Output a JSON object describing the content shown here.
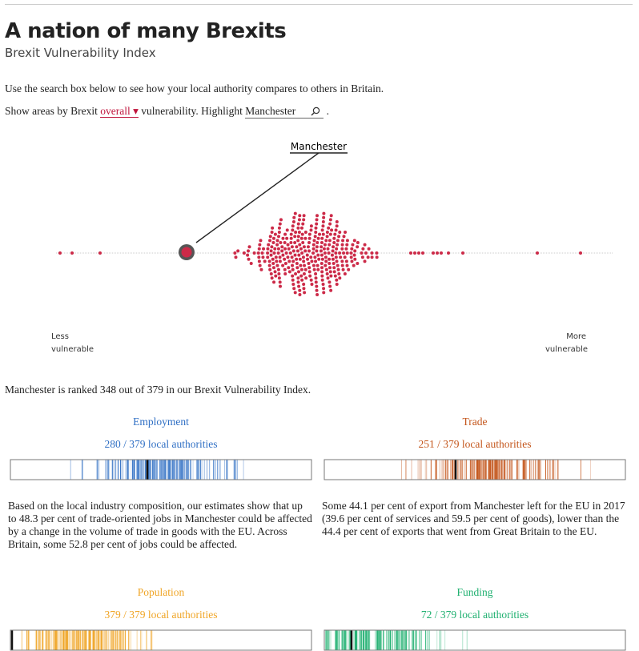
{
  "header": {
    "title": "A nation of many Brexits",
    "subtitle": "Brexit Vulnerability Index"
  },
  "intro": "Use the search box below to see how your local authority compares to others in Britain.",
  "controls": {
    "prefix": "Show areas by Brexit",
    "measure": "overall ▾",
    "middle": "vulnerability. Highlight",
    "search": "Manchester",
    "suffix": "."
  },
  "chart": {
    "highlight": "Manchester",
    "left_label": [
      "Less",
      "vulnerable"
    ],
    "right_label": [
      "More",
      "vulnerable"
    ],
    "color": "#cc2a48"
  },
  "rank_text": "Manchester is ranked 348 out of 379 in our Brexit Vulnerability Index.",
  "tiles": [
    {
      "title": "Employment",
      "subtitle": "280 / 379 local authorities",
      "color": "#2f6fc4",
      "text": "Based on the local industry composition, our estimates show that up to 48.3 per cent of trade-oriented jobs in Manchester could be affected by a change in the volume of trade in goods with the EU. Across Britain, some 52.8 per cent of jobs could be affected."
    },
    {
      "title": "Trade",
      "subtitle": "251 / 379 local authorities",
      "color": "#c4561c",
      "text": "Some 44.1 per cent of export from Manchester left for the EU in 2017 (39.6 per cent of services and 59.5 per cent of goods), lower than the 44.4 per cent of exports that went from Great Britain to the EU."
    },
    {
      "title": "Population",
      "subtitle": "379 / 379 local authorities",
      "color": "#f0a526"
    },
    {
      "title": "Funding",
      "subtitle": "72 / 379 local authorities",
      "color": "#1fb070"
    }
  ]
}
